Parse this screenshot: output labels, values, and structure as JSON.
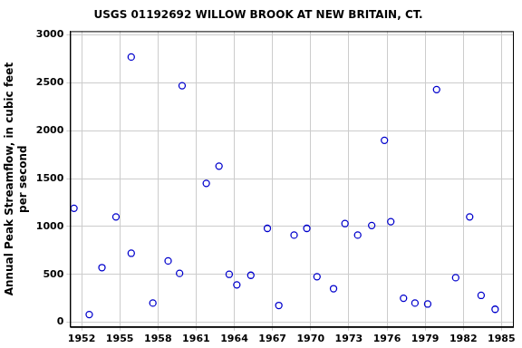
{
  "chart_data": {
    "type": "scatter",
    "title": "USGS 01192692 WILLOW BROOK AT NEW BRITAIN, CT.",
    "y_label": [
      "Annual Peak Streamflow, in cubic feet",
      "per second"
    ],
    "x": [
      1951.4,
      1952.6,
      1953.6,
      1954.7,
      1955.9,
      1955.9,
      1957.6,
      1958.8,
      1959.7,
      1959.9,
      1961.8,
      1962.8,
      1963.6,
      1964.2,
      1965.3,
      1966.6,
      1967.5,
      1968.7,
      1969.7,
      1970.5,
      1971.8,
      1972.7,
      1973.7,
      1974.8,
      1975.8,
      1976.3,
      1977.3,
      1978.2,
      1979.2,
      1979.9,
      1981.4,
      1982.5,
      1983.4,
      1984.5
    ],
    "values": [
      1190,
      80,
      570,
      1100,
      2770,
      720,
      200,
      640,
      510,
      2470,
      1450,
      1630,
      500,
      390,
      490,
      980,
      175,
      910,
      980,
      475,
      350,
      1030,
      910,
      1010,
      1900,
      1050,
      250,
      200,
      190,
      2430,
      465,
      1100,
      280,
      135
    ],
    "color": "#0000cc",
    "marker": "circle",
    "xlim": [
      1951.1,
      1985.9
    ],
    "xticks": [
      1952,
      1955,
      1958,
      1961,
      1964,
      1967,
      1970,
      1973,
      1976,
      1979,
      1982,
      1985
    ],
    "ylim": [
      -50,
      3040
    ],
    "yticks": [
      0,
      500,
      1000,
      1500,
      2000,
      2500,
      3000
    ],
    "grid": true
  }
}
